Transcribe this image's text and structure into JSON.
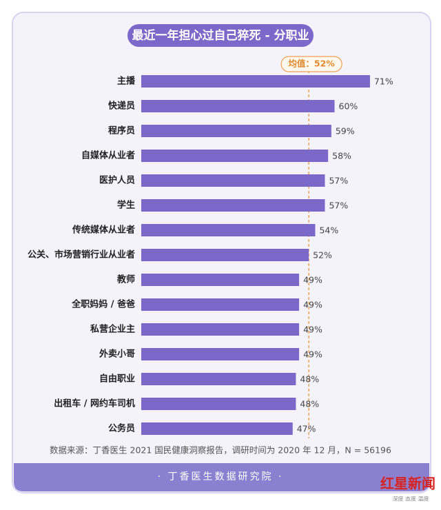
{
  "chart_data": {
    "type": "bar",
    "orientation": "horizontal",
    "title": "最近一年担心过自己猝死 - 分职业",
    "categories": [
      "主播",
      "快递员",
      "程序员",
      "自媒体从业者",
      "医护人员",
      "学生",
      "传统媒体从业者",
      "公关、市场营销行业从业者",
      "教师",
      "全职妈妈 / 爸爸",
      "私营企业主",
      "外卖小哥",
      "自由职业",
      "出租车 / 网约车司机",
      "公务员"
    ],
    "values": [
      71,
      60,
      59,
      58,
      57,
      57,
      54,
      52,
      49,
      49,
      49,
      49,
      48,
      48,
      47
    ],
    "value_labels": [
      "71%",
      "60%",
      "59%",
      "58%",
      "57%",
      "57%",
      "54%",
      "52%",
      "49%",
      "49%",
      "49%",
      "49%",
      "48%",
      "48%",
      "47%"
    ],
    "color": "#7b68c8",
    "xlim": [
      0,
      80
    ],
    "mean_line": {
      "value": 52,
      "label": "均值：52%",
      "color": "#f0a050"
    },
    "source": "数据来源：丁香医生 2021 国民健康洞察报告，调研时间为 2020 年 12 月，N = 56196",
    "footer": "· 丁香医生数据研究院 ·",
    "logo": {
      "name": "红星新闻",
      "slogan": "深度 态度 温度"
    }
  }
}
